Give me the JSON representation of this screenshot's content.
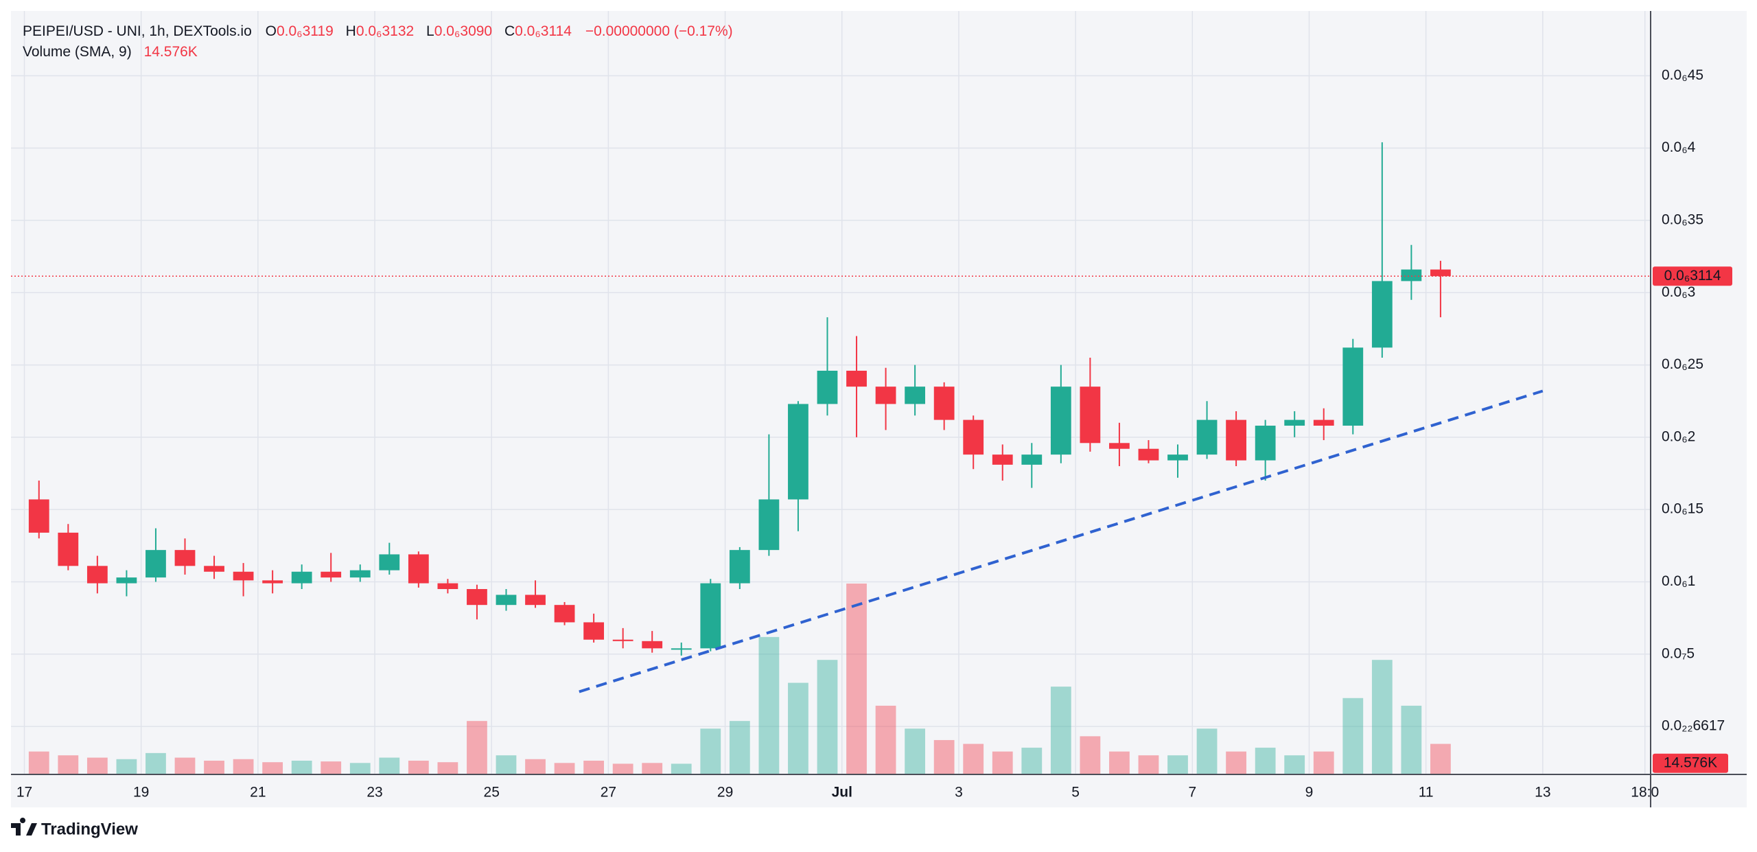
{
  "chart_data": {
    "type": "candlestick",
    "legend_text": {
      "symbol": "PEIPEI/USD - UNI, 1h, DEXTools.io",
      "ohlc": [
        {
          "key": "O",
          "value": "0.0₆3119"
        },
        {
          "key": "H",
          "value": "0.0₆3132"
        },
        {
          "key": "L",
          "value": "0.0₆3090"
        },
        {
          "key": "C",
          "value": "0.0₆3114"
        }
      ],
      "change": "−0.00000000 (−0.17%)",
      "volume_title": "Volume (SMA, 9)",
      "volume_value": "14.576K"
    },
    "up_color": "#22ab94",
    "down_color": "#f23645",
    "x": [
      "Jun 17 00:00",
      "Jun 17 12:00",
      "Jun 18 00:00",
      "Jun 18 12:00",
      "Jun 19 00:00",
      "Jun 19 12:00",
      "Jun 20 00:00",
      "Jun 20 12:00",
      "Jun 21 00:00",
      "Jun 21 12:00",
      "Jun 22 00:00",
      "Jun 22 12:00",
      "Jun 23 00:00",
      "Jun 23 12:00",
      "Jun 24 00:00",
      "Jun 24 12:00",
      "Jun 25 00:00",
      "Jun 25 12:00",
      "Jun 26 00:00",
      "Jun 26 12:00",
      "Jun 27 00:00",
      "Jun 27 12:00",
      "Jun 28 00:00",
      "Jun 28 12:00",
      "Jun 29 00:00",
      "Jun 29 12:00",
      "Jun 30 00:00",
      "Jun 30 12:00",
      "Jul 1 00:00",
      "Jul 1 12:00",
      "Jul 2 00:00",
      "Jul 2 12:00",
      "Jul 3 00:00",
      "Jul 3 12:00",
      "Jul 4 00:00",
      "Jul 4 12:00",
      "Jul 5 00:00",
      "Jul 5 12:00",
      "Jul 6 00:00",
      "Jul 6 12:00",
      "Jul 7 00:00",
      "Jul 7 12:00",
      "Jul 8 00:00",
      "Jul 8 12:00",
      "Jul 9 00:00",
      "Jul 9 12:00",
      "Jul 10 00:00",
      "Jul 10 12:00",
      "Jul 11 00:00"
    ],
    "open": [
      1.57e-07,
      1.34e-07,
      1.11e-07,
      9.9e-08,
      1.03e-07,
      1.22e-07,
      1.11e-07,
      1.07e-07,
      1.01e-07,
      9.9e-08,
      1.07e-07,
      1.03e-07,
      1.08e-07,
      1.19e-07,
      9.9e-08,
      9.5e-08,
      8.4e-08,
      9.1e-08,
      8.4e-08,
      7.2e-08,
      6e-08,
      5.9e-08,
      5.4e-08,
      5.4e-08,
      9.9e-08,
      1.22e-07,
      1.57e-07,
      2.23e-07,
      2.46e-07,
      2.35e-07,
      2.23e-07,
      2.35e-07,
      2.12e-07,
      1.88e-07,
      1.81e-07,
      1.88e-07,
      2.35e-07,
      1.96e-07,
      1.92e-07,
      1.84e-07,
      1.88e-07,
      2.12e-07,
      1.84e-07,
      2.08e-07,
      2.12e-07,
      2.08e-07,
      2.62e-07,
      3.08e-07,
      3.16e-07
    ],
    "high": [
      1.7e-07,
      1.4e-07,
      1.18e-07,
      1.08e-07,
      1.37e-07,
      1.3e-07,
      1.18e-07,
      1.13e-07,
      1.08e-07,
      1.12e-07,
      1.2e-07,
      1.12e-07,
      1.27e-07,
      1.21e-07,
      1.02e-07,
      9.8e-08,
      9.5e-08,
      1.01e-07,
      8.6e-08,
      7.8e-08,
      6.8e-08,
      6.6e-08,
      5.8e-08,
      1.02e-07,
      1.24e-07,
      2.02e-07,
      2.25e-07,
      2.83e-07,
      2.7e-07,
      2.48e-07,
      2.5e-07,
      2.38e-07,
      2.15e-07,
      1.95e-07,
      1.96e-07,
      2.5e-07,
      2.55e-07,
      2.1e-07,
      1.98e-07,
      1.95e-07,
      2.25e-07,
      2.18e-07,
      2.12e-07,
      2.18e-07,
      2.2e-07,
      2.68e-07,
      4.04e-07,
      3.33e-07,
      3.22e-07
    ],
    "low": [
      1.3e-07,
      1.08e-07,
      9.2e-08,
      9e-08,
      1e-07,
      1.05e-07,
      1.02e-07,
      9e-08,
      9.2e-08,
      9.5e-08,
      1e-07,
      1e-07,
      1.05e-07,
      9.6e-08,
      9.2e-08,
      7.4e-08,
      8e-08,
      8.2e-08,
      7e-08,
      5.8e-08,
      5.4e-08,
      5.1e-08,
      4.9e-08,
      5.2e-08,
      9.5e-08,
      1.18e-07,
      1.35e-07,
      2.15e-07,
      2e-07,
      2.05e-07,
      2.15e-07,
      2.05e-07,
      1.78e-07,
      1.7e-07,
      1.65e-07,
      1.82e-07,
      1.9e-07,
      1.8e-07,
      1.82e-07,
      1.72e-07,
      1.85e-07,
      1.8e-07,
      1.7e-07,
      2e-07,
      1.98e-07,
      2.02e-07,
      2.55e-07,
      2.95e-07,
      2.83e-07
    ],
    "close": [
      1.34e-07,
      1.11e-07,
      9.9e-08,
      1.03e-07,
      1.22e-07,
      1.11e-07,
      1.07e-07,
      1.01e-07,
      9.9e-08,
      1.07e-07,
      1.03e-07,
      1.08e-07,
      1.19e-07,
      9.9e-08,
      9.5e-08,
      8.4e-08,
      9.1e-08,
      8.4e-08,
      7.2e-08,
      6e-08,
      5.9e-08,
      5.4e-08,
      5.4e-08,
      9.9e-08,
      1.22e-07,
      1.57e-07,
      2.23e-07,
      2.46e-07,
      2.35e-07,
      2.23e-07,
      2.35e-07,
      2.12e-07,
      1.88e-07,
      1.81e-07,
      1.88e-07,
      2.35e-07,
      1.96e-07,
      1.92e-07,
      1.84e-07,
      1.88e-07,
      2.12e-07,
      1.84e-07,
      2.08e-07,
      2.12e-07,
      2.08e-07,
      2.62e-07,
      3.08e-07,
      3.16e-07,
      3.114e-07
    ],
    "volume": [
      30000,
      25000,
      22000,
      20000,
      28000,
      22000,
      18000,
      20000,
      16000,
      18000,
      17000,
      15000,
      22000,
      18000,
      16000,
      70000,
      25000,
      20000,
      15000,
      18000,
      14000,
      15000,
      14000,
      60000,
      70000,
      180000,
      120000,
      150000,
      250000,
      90000,
      60000,
      45000,
      40000,
      30000,
      35000,
      115000,
      50000,
      30000,
      25000,
      25000,
      60000,
      30000,
      35000,
      25000,
      30000,
      100000,
      150000,
      90000,
      40000
    ],
    "xlim": [
      "Jun 16 18:30",
      "Jul 14 20:20"
    ],
    "xticks": [
      {
        "value": "Jun 17 00:00",
        "label": "17"
      },
      {
        "value": "Jun 19 00:00",
        "label": "19"
      },
      {
        "value": "Jun 21 00:00",
        "label": "21"
      },
      {
        "value": "Jun 23 00:00",
        "label": "23"
      },
      {
        "value": "Jun 25 00:00",
        "label": "25"
      },
      {
        "value": "Jun 27 00:00",
        "label": "27"
      },
      {
        "value": "Jun 29 00:00",
        "label": "29"
      },
      {
        "value": "Jul 1 00:00",
        "label": "Jul"
      },
      {
        "value": "Jul 3 00:00",
        "label": "3"
      },
      {
        "value": "Jul 5 00:00",
        "label": "5"
      },
      {
        "value": "Jul 7 00:00",
        "label": "7"
      },
      {
        "value": "Jul 9 00:00",
        "label": "9"
      },
      {
        "value": "Jul 11 00:00",
        "label": "11"
      },
      {
        "value": "Jul 13 00:00",
        "label": "13"
      },
      {
        "value": "Jul 14 18:00",
        "label": "18:0"
      }
    ],
    "ylim": [
      -3.32e-08,
      4.948e-07
    ],
    "yticks": [
      {
        "value": 6.617e-23,
        "label": "0.0₂₂6617"
      },
      {
        "value": 5e-08,
        "label": "0.0₇5"
      },
      {
        "value": 1e-07,
        "label": "0.0₆1"
      },
      {
        "value": 1.5e-07,
        "label": "0.0₆15"
      },
      {
        "value": 2e-07,
        "label": "0.0₆2"
      },
      {
        "value": 2.5e-07,
        "label": "0.0₆25"
      },
      {
        "value": 3e-07,
        "label": "0.0₆3"
      },
      {
        "value": 3.5e-07,
        "label": "0.0₆35"
      },
      {
        "value": 4e-07,
        "label": "0.0₆4"
      },
      {
        "value": 4.5e-07,
        "label": "0.0₆45"
      }
    ],
    "volume_ylim": [
      0,
      1000000
    ],
    "grid": true,
    "last_price": {
      "value": 3.114e-07,
      "label": "0.0₆3114"
    },
    "volume_last": {
      "value": 14576,
      "label": "14.576K"
    },
    "trendline": {
      "x": [
        "Jun 26 12:00",
        "Jul 13 00:00"
      ],
      "values": [
        2.4e-08,
        2.32e-07
      ],
      "color": "#2f62d0"
    }
  },
  "brand": "TradingView"
}
